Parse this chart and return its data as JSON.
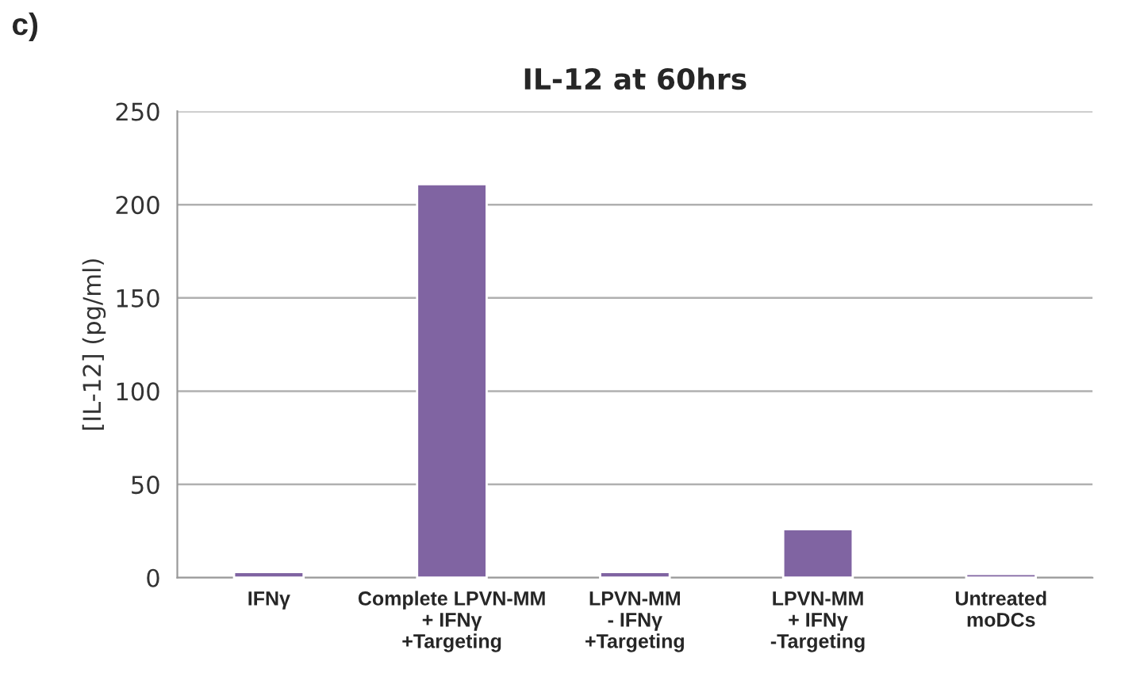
{
  "chart_data": {
    "type": "bar",
    "title": "IL-12 at 60hrs",
    "ylabel": "[IL-12] (pg/ml)",
    "categories": [
      "IFNγ",
      "Complete LPVN-MM\n+ IFNγ\n+Targeting",
      "LPVN-MM\n- IFNγ\n+Targeting",
      "LPVN-MM\n+ IFNγ\n-Targeting",
      "Untreated\nmoDCs"
    ],
    "values": [
      3,
      211,
      3,
      26,
      2
    ],
    "color": "#8064a2",
    "ylim": [
      0,
      250
    ],
    "yticks": [
      0,
      50,
      100,
      150,
      200,
      250
    ],
    "grid": "y",
    "annotations": [
      "c)"
    ]
  }
}
